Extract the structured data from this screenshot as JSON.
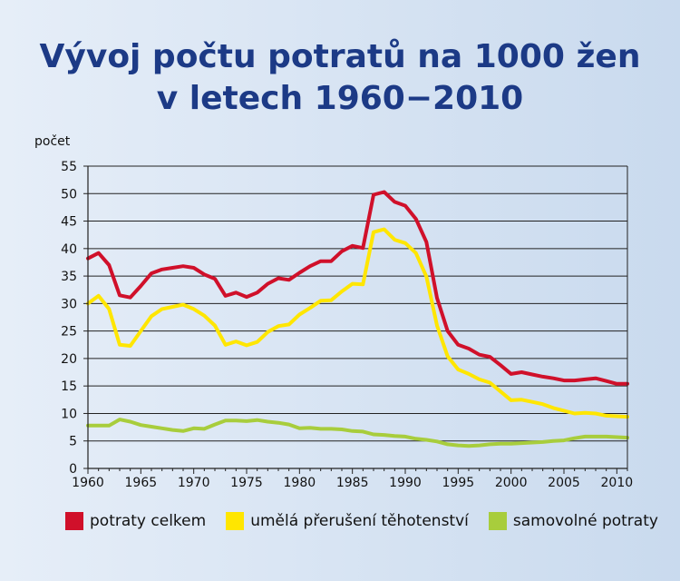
{
  "chart_data": {
    "type": "line",
    "title_line1": "Vývoj počtu potratů na 1000 žen",
    "title_line2": "v letech 1960−2010",
    "ylabel": "počet",
    "xlabel": "",
    "xlim": [
      1960,
      2011
    ],
    "ylim": [
      0,
      55
    ],
    "yticks": [
      0,
      5,
      10,
      15,
      20,
      25,
      30,
      35,
      40,
      45,
      50,
      55
    ],
    "xticks": [
      1960,
      1965,
      1970,
      1975,
      1980,
      1985,
      1990,
      1995,
      2000,
      2005,
      2010
    ],
    "grid": true,
    "legend_position": "bottom",
    "x": [
      1960,
      1961,
      1962,
      1963,
      1964,
      1965,
      1966,
      1967,
      1968,
      1969,
      1970,
      1971,
      1972,
      1973,
      1974,
      1975,
      1976,
      1977,
      1978,
      1979,
      1980,
      1981,
      1982,
      1983,
      1984,
      1985,
      1986,
      1987,
      1988,
      1989,
      1990,
      1991,
      1992,
      1993,
      1994,
      1995,
      1996,
      1997,
      1998,
      1999,
      2000,
      2001,
      2002,
      2003,
      2004,
      2005,
      2006,
      2007,
      2008,
      2009,
      2010,
      2011
    ],
    "series": [
      {
        "name": "potraty celkem",
        "color": "#d0102a",
        "values": [
          38.2,
          39.2,
          37.0,
          31.5,
          31.1,
          33.2,
          35.5,
          36.2,
          36.5,
          36.8,
          36.5,
          35.3,
          34.5,
          31.4,
          32.0,
          31.2,
          32.0,
          33.6,
          34.6,
          34.3,
          35.6,
          36.8,
          37.7,
          37.7,
          39.5,
          40.5,
          40.1,
          49.8,
          50.3,
          48.5,
          47.8,
          45.4,
          41.2,
          31.0,
          25.0,
          22.5,
          21.8,
          20.7,
          20.3,
          18.8,
          17.2,
          17.5,
          17.1,
          16.7,
          16.4,
          16.0,
          16.0,
          16.2,
          16.4,
          15.9,
          15.4,
          15.4
        ]
      },
      {
        "name": "umělá přerušení těhotenství",
        "color": "#ffe600",
        "values": [
          30.0,
          31.4,
          29.0,
          22.5,
          22.3,
          25.0,
          27.7,
          29.0,
          29.4,
          29.8,
          29.0,
          27.8,
          26.0,
          22.5,
          23.1,
          22.4,
          23.0,
          24.8,
          25.9,
          26.2,
          28.0,
          29.2,
          30.5,
          30.6,
          32.2,
          33.6,
          33.5,
          43.0,
          43.5,
          41.6,
          41.0,
          39.2,
          34.9,
          26.0,
          20.4,
          18.0,
          17.2,
          16.2,
          15.6,
          14.0,
          12.4,
          12.5,
          12.1,
          11.7,
          11.0,
          10.5,
          10.0,
          10.1,
          10.0,
          9.6,
          9.5,
          9.4
        ]
      },
      {
        "name": "samovolné potraty",
        "color": "#a8cd3c",
        "values": [
          7.8,
          7.8,
          7.8,
          8.9,
          8.5,
          7.9,
          7.6,
          7.3,
          7.0,
          6.8,
          7.3,
          7.2,
          8.0,
          8.7,
          8.7,
          8.6,
          8.8,
          8.5,
          8.3,
          8.0,
          7.3,
          7.4,
          7.2,
          7.2,
          7.1,
          6.8,
          6.7,
          6.2,
          6.1,
          5.9,
          5.8,
          5.4,
          5.2,
          4.9,
          4.4,
          4.2,
          4.1,
          4.2,
          4.4,
          4.5,
          4.5,
          4.6,
          4.7,
          4.8,
          5.0,
          5.1,
          5.5,
          5.8,
          5.8,
          5.8,
          5.7,
          5.6
        ]
      }
    ]
  }
}
